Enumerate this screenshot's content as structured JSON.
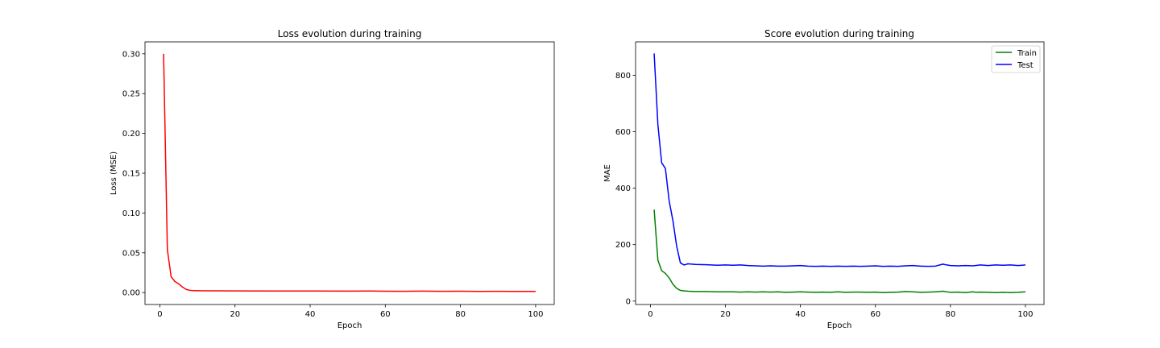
{
  "chart_data": [
    {
      "type": "line",
      "title": "Loss evolution during training",
      "xlabel": "Epoch",
      "ylabel": "Loss (MSE)",
      "xlim": [
        -3.95,
        104.95
      ],
      "ylim": [
        -0.015,
        0.315
      ],
      "xticks": [
        0,
        20,
        40,
        60,
        80,
        100
      ],
      "xtick_labels": [
        "0",
        "20",
        "40",
        "60",
        "80",
        "100"
      ],
      "yticks": [
        0,
        0.05,
        0.1,
        0.15,
        0.2,
        0.25,
        0.3
      ],
      "ytick_labels": [
        "0.00",
        "0.05",
        "0.10",
        "0.15",
        "0.20",
        "0.25",
        "0.30"
      ],
      "grid": false,
      "legend": null,
      "series": [
        {
          "name": "",
          "color": "#ff0000",
          "x": [
            1,
            2,
            3,
            4,
            5,
            6,
            7,
            8,
            9,
            10,
            15,
            20,
            30,
            40,
            50,
            56,
            60,
            65,
            70,
            75,
            80,
            85,
            90,
            95,
            100
          ],
          "y": [
            0.3,
            0.054,
            0.02,
            0.014,
            0.011,
            0.007,
            0.004,
            0.0028,
            0.0024,
            0.0023,
            0.0022,
            0.0021,
            0.002,
            0.0019,
            0.0018,
            0.0019,
            0.0017,
            0.0016,
            0.0018,
            0.0016,
            0.0017,
            0.0015,
            0.0016,
            0.0014,
            0.0014
          ]
        }
      ]
    },
    {
      "type": "line",
      "title": "Score evolution during training",
      "xlabel": "Epoch",
      "ylabel": "MAE",
      "xlim": [
        -3.95,
        104.95
      ],
      "ylim": [
        -12,
        918
      ],
      "xticks": [
        0,
        20,
        40,
        60,
        80,
        100
      ],
      "xtick_labels": [
        "0",
        "20",
        "40",
        "60",
        "80",
        "100"
      ],
      "yticks": [
        0,
        200,
        400,
        600,
        800
      ],
      "ytick_labels": [
        "0",
        "200",
        "400",
        "600",
        "800"
      ],
      "grid": false,
      "legend": "top-right",
      "series": [
        {
          "name": "Train",
          "color": "#008000",
          "x": [
            1,
            2,
            3,
            4,
            5,
            6,
            7,
            8,
            9,
            10,
            12,
            15,
            18,
            20,
            22,
            24,
            26,
            28,
            30,
            32,
            34,
            36,
            38,
            40,
            42,
            44,
            46,
            48,
            50,
            52,
            54,
            56,
            58,
            60,
            62,
            64,
            66,
            68,
            70,
            72,
            74,
            76,
            78,
            80,
            82,
            84,
            86,
            87,
            88,
            90,
            92,
            94,
            96,
            98,
            100
          ],
          "y": [
            324,
            145,
            108,
            98,
            82,
            60,
            45,
            38,
            36,
            35,
            34,
            34,
            33,
            33,
            33,
            32,
            33,
            32,
            33,
            32,
            33,
            31,
            32,
            33,
            32,
            31,
            32,
            31,
            33,
            31,
            32,
            32,
            31,
            32,
            30,
            31,
            32,
            34,
            33,
            31,
            32,
            33,
            35,
            31,
            32,
            30,
            33,
            31,
            32,
            31,
            30,
            31,
            30,
            31,
            33
          ]
        },
        {
          "name": "Test",
          "color": "#0000ff",
          "x": [
            1,
            2,
            3,
            4,
            5,
            6,
            7,
            8,
            9,
            10,
            12,
            15,
            18,
            20,
            22,
            24,
            26,
            28,
            30,
            32,
            34,
            36,
            38,
            40,
            42,
            44,
            46,
            48,
            50,
            52,
            54,
            56,
            58,
            60,
            62,
            64,
            66,
            68,
            70,
            72,
            74,
            76,
            78,
            79,
            80,
            82,
            84,
            86,
            88,
            90,
            92,
            94,
            96,
            98,
            100
          ],
          "y": [
            877,
            625,
            490,
            470,
            355,
            285,
            195,
            135,
            128,
            132,
            130,
            129,
            127,
            128,
            127,
            128,
            126,
            125,
            124,
            125,
            124,
            124,
            125,
            126,
            124,
            123,
            124,
            123,
            124,
            123,
            124,
            123,
            124,
            125,
            123,
            124,
            123,
            125,
            126,
            124,
            123,
            124,
            131,
            128,
            126,
            125,
            126,
            125,
            128,
            126,
            128,
            127,
            128,
            126,
            128
          ]
        }
      ]
    }
  ]
}
